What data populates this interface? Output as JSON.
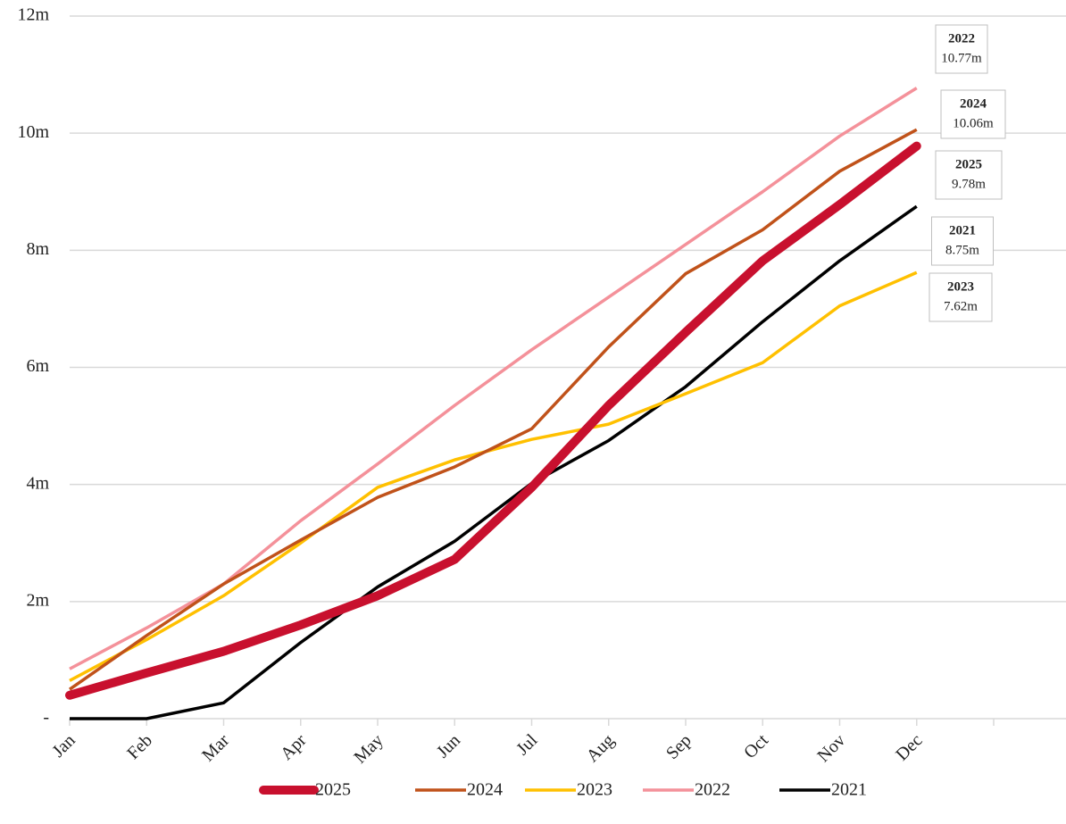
{
  "chart_data": {
    "type": "line",
    "categories": [
      "Jan",
      "Feb",
      "Mar",
      "Apr",
      "May",
      "Jun",
      "Jul",
      "Aug",
      "Sep",
      "Oct",
      "Nov",
      "Dec",
      null
    ],
    "series": [
      {
        "name": "2025",
        "color": "#c8102e",
        "width": 10,
        "values": [
          0.4,
          0.78,
          1.15,
          1.6,
          2.1,
          2.72,
          3.95,
          5.35,
          6.6,
          7.82,
          8.78,
          9.78,
          null
        ],
        "end_label": "9.78m"
      },
      {
        "name": "2024",
        "color": "#c0521a",
        "width": 3.5,
        "values": [
          0.5,
          1.42,
          2.3,
          3.05,
          3.78,
          4.3,
          4.95,
          6.35,
          7.6,
          8.35,
          9.35,
          10.06,
          null
        ],
        "end_label": "10.06m"
      },
      {
        "name": "2023",
        "color": "#ffc000",
        "width": 3.5,
        "values": [
          0.65,
          1.35,
          2.1,
          3.0,
          3.95,
          4.42,
          4.77,
          5.03,
          5.55,
          6.08,
          7.05,
          7.62,
          null
        ],
        "end_label": "7.62m"
      },
      {
        "name": "2022",
        "color": "#f4919a",
        "width": 3.5,
        "values": [
          0.85,
          1.55,
          2.3,
          3.38,
          4.35,
          5.35,
          6.3,
          7.2,
          8.1,
          9.0,
          9.95,
          10.77,
          null
        ],
        "end_label": "10.77m"
      },
      {
        "name": "2021",
        "color": "#000000",
        "width": 3.5,
        "values": [
          0,
          0,
          0.27,
          1.3,
          2.25,
          3.03,
          4.02,
          4.75,
          5.67,
          6.78,
          7.82,
          8.75,
          null
        ],
        "end_label": "8.75m"
      }
    ],
    "ylim": [
      0,
      12
    ],
    "yticks": [
      {
        "value": 0,
        "label": "-"
      },
      {
        "value": 2,
        "label": "2m"
      },
      {
        "value": 4,
        "label": "4m"
      },
      {
        "value": 6,
        "label": "6m"
      },
      {
        "value": 8,
        "label": "8m"
      },
      {
        "value": 10,
        "label": "10m"
      },
      {
        "value": 12,
        "label": "12m"
      }
    ],
    "grid": true,
    "legend": "bottom"
  }
}
